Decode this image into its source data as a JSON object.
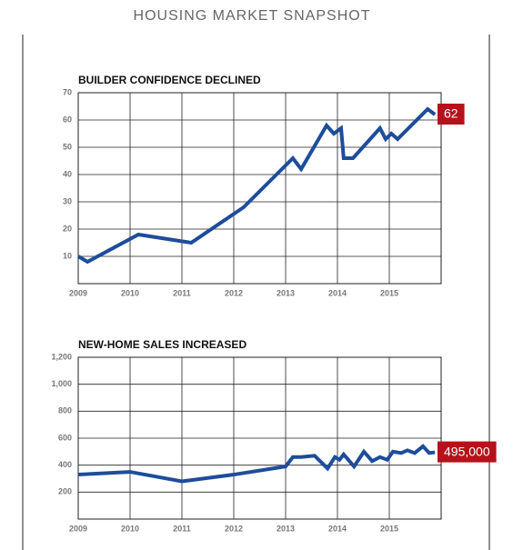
{
  "title": "HOUSING MARKET SNAPSHOT",
  "chart_data": [
    {
      "type": "line",
      "title": "BUILDER CONFIDENCE DECLINED",
      "color": "#1d4d9b",
      "label_color": "#b5121b",
      "xlim": [
        2009,
        2016
      ],
      "xticks": [
        2009,
        2010,
        2011,
        2012,
        2013,
        2014,
        2015
      ],
      "ylim": [
        0,
        70
      ],
      "yticks": [
        10,
        20,
        30,
        40,
        50,
        60,
        70
      ],
      "grid": true,
      "x": [
        2009.0,
        2009.18,
        2010.16,
        2011.18,
        2012.19,
        2013.14,
        2013.3,
        2013.79,
        2013.93,
        2014.07,
        2014.12,
        2014.3,
        2014.82,
        2014.93,
        2015.04,
        2015.16,
        2015.74,
        2015.88
      ],
      "values": [
        10,
        8,
        18,
        15,
        28,
        46,
        42,
        58,
        55,
        57,
        46,
        46,
        57,
        53,
        55,
        53,
        64,
        62
      ]
    },
    {
      "type": "line",
      "title": "NEW-HOME SALES INCREASED",
      "color": "#1d4d9b",
      "label_color": "#b5121b",
      "xlim": [
        2009,
        2016
      ],
      "xticks": [
        2009,
        2010,
        2011,
        2012,
        2013,
        2014,
        2015
      ],
      "ylim": [
        0,
        1200
      ],
      "yticks": [
        200,
        400,
        600,
        800,
        {
          "value": 1000,
          "label": "1,000"
        },
        {
          "value": 1200,
          "label": "1,200"
        }
      ],
      "grid": true,
      "x": [
        2009.0,
        2010.0,
        2011.0,
        2012.0,
        2013.0,
        2013.14,
        2013.3,
        2013.56,
        2013.81,
        2013.95,
        2014.04,
        2014.12,
        2014.32,
        2014.51,
        2014.67,
        2014.82,
        2014.96,
        2015.07,
        2015.23,
        2015.35,
        2015.49,
        2015.65,
        2015.77,
        2015.88
      ],
      "values": [
        330,
        350,
        280,
        330,
        390,
        460,
        460,
        470,
        375,
        460,
        440,
        480,
        390,
        500,
        430,
        460,
        440,
        500,
        490,
        510,
        490,
        540,
        490,
        495
      ],
      "value_labels": [
        null,
        null,
        null,
        null,
        null,
        null,
        null,
        null,
        null,
        null,
        null,
        null,
        null,
        null,
        null,
        null,
        null,
        null,
        null,
        null,
        null,
        null,
        null,
        "495,000"
      ]
    }
  ]
}
